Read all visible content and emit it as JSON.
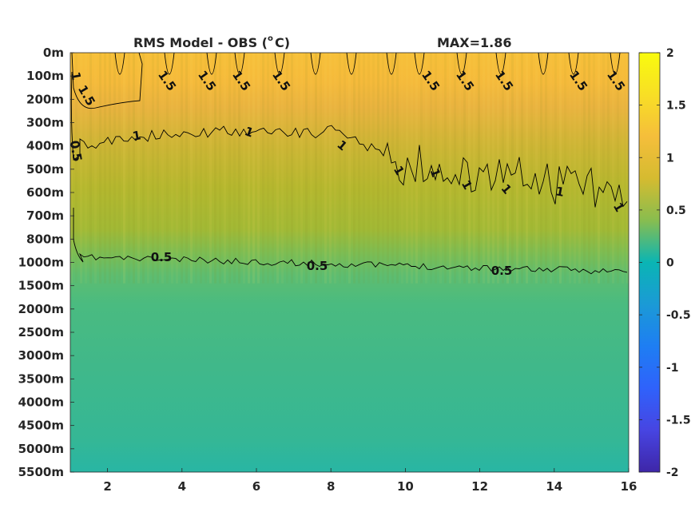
{
  "chart_data": {
    "type": "heatmap",
    "title": "RMS Model - OBS (",
    "title_unit_sup": "o",
    "title_unit_tail": "C)",
    "max_label": "MAX=1.86",
    "x_ticks": [
      "2",
      "4",
      "6",
      "8",
      "10",
      "12",
      "14",
      "16"
    ],
    "x_tick_values": [
      2,
      4,
      6,
      8,
      10,
      12,
      14,
      16
    ],
    "xlim": [
      1,
      16
    ],
    "y_ticks": [
      "0m",
      "100m",
      "200m",
      "300m",
      "400m",
      "500m",
      "600m",
      "700m",
      "800m",
      "1000m",
      "1500m",
      "2000m",
      "2500m",
      "3000m",
      "3500m",
      "4000m",
      "4500m",
      "5000m",
      "5500m"
    ],
    "colorbar": {
      "ticks": [
        "2",
        "1.5",
        "1",
        "0.5",
        "0",
        "-0.5",
        "-1",
        "-1.5",
        "-2"
      ],
      "tick_values": [
        2,
        1.5,
        1,
        0.5,
        0,
        -0.5,
        -1,
        -1.5,
        -2
      ],
      "clim": [
        -2,
        2
      ],
      "colormap": "parula"
    },
    "contour_levels": [
      0.5,
      1,
      1.5
    ],
    "contour_labels": {
      "upper_1_5": [
        "1.5",
        "1.5",
        "1.5",
        "1.5",
        "1.5",
        "1.5",
        "1.5",
        "1.5",
        "1.5"
      ],
      "left_1_5": "1.5",
      "left_1": "1",
      "left_0_5": "0.5",
      "mid_1": [
        "1",
        "1",
        "1",
        "1",
        "1",
        "1",
        "1",
        "1",
        "1"
      ],
      "deep_0_5": [
        "0.5",
        "0.5",
        "0.5"
      ]
    },
    "value_profile_by_depth_row": [
      1.55,
      1.5,
      1.45,
      1.35,
      1.2,
      1.05,
      0.95,
      0.9,
      0.8,
      0.55,
      0.45,
      0.4,
      0.38,
      0.36,
      0.35,
      0.34,
      0.33,
      0.32,
      0.3
    ]
  },
  "colors": {
    "axis": "#262626",
    "contour": "#000000"
  }
}
